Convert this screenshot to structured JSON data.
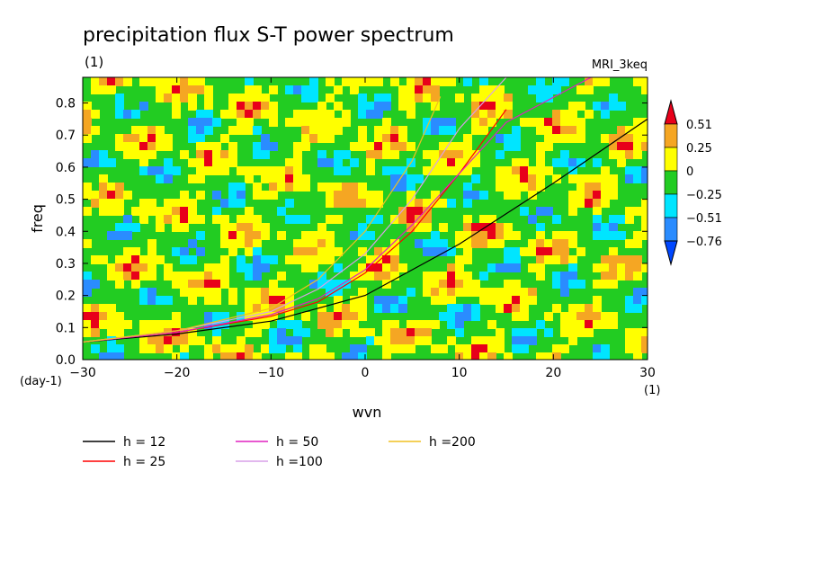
{
  "chart_data": {
    "type": "heatmap",
    "title": "precipitation flux S-T power spectrum",
    "subtitle_left": "(1)",
    "subtitle_right": "MRI_3keq",
    "xlabel": "wvn",
    "ylabel": "freq",
    "x_unit": "(1)",
    "y_unit": "(day-1)",
    "xlim": [
      -30,
      30
    ],
    "ylim": [
      0,
      0.88
    ],
    "xticks": [
      -30,
      -20,
      -10,
      0,
      10,
      20,
      30
    ],
    "yticks": [
      0.0,
      0.1,
      0.2,
      0.3,
      0.4,
      0.5,
      0.6,
      0.7,
      0.8
    ],
    "grid": false,
    "colorbar": {
      "placement": "right",
      "labels": [
        "0.51",
        "0.25",
        "0",
        "-0.25",
        "-0.51",
        "-0.76"
      ],
      "levels": [
        0.51,
        0.25,
        0,
        -0.25,
        -0.51,
        -0.76
      ],
      "colors": [
        "#e8001a",
        "#f5a623",
        "#ffff00",
        "#22cc22",
        "#00e5ff",
        "#2a8cff",
        "#0047ff"
      ]
    },
    "series": [
      {
        "name": "h = 12",
        "color": "#000000",
        "x": [
          -30,
          -20,
          -10,
          0,
          10,
          20,
          30
        ],
        "y": [
          0.055,
          0.08,
          0.12,
          0.2,
          0.36,
          0.55,
          0.75
        ]
      },
      {
        "name": "h = 25",
        "color": "#ff0000",
        "x": [
          -30,
          -20,
          -10,
          -5,
          0,
          5,
          10,
          15
        ],
        "y": [
          0.055,
          0.085,
          0.135,
          0.18,
          0.27,
          0.4,
          0.58,
          0.78
        ]
      },
      {
        "name": "h = 50",
        "color": "#e020c0",
        "x": [
          -30,
          -20,
          -10,
          -5,
          0,
          5,
          10,
          15,
          24
        ],
        "y": [
          0.055,
          0.085,
          0.14,
          0.19,
          0.28,
          0.42,
          0.58,
          0.74,
          0.88
        ]
      },
      {
        "name": "h =100",
        "color": "#d9a0e8",
        "x": [
          -30,
          -20,
          -10,
          -5,
          0,
          5,
          10,
          15
        ],
        "y": [
          0.055,
          0.09,
          0.15,
          0.22,
          0.33,
          0.5,
          0.72,
          0.88
        ]
      },
      {
        "name": "h =200",
        "color": "#f0c020",
        "x": [
          -30,
          -20,
          -10,
          -5,
          0,
          5,
          8
        ],
        "y": [
          0.055,
          0.09,
          0.16,
          0.25,
          0.4,
          0.62,
          0.82
        ]
      }
    ]
  }
}
